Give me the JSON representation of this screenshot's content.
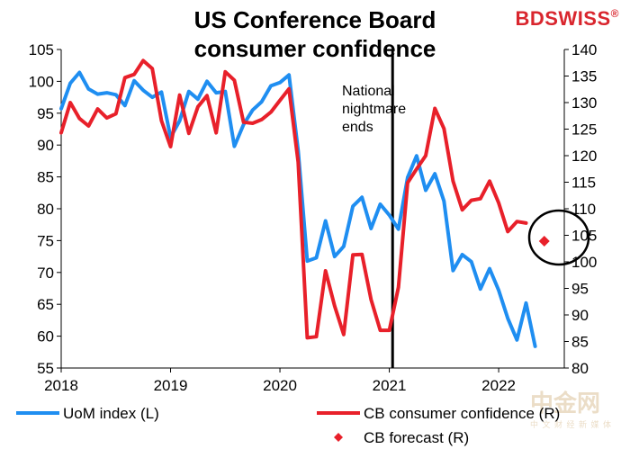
{
  "title_line1": "US Conference Board",
  "title_line2": "consumer confidence",
  "brand": {
    "part1": "BD",
    "part2": "SWISS",
    "accent": "#d9262e"
  },
  "watermark": {
    "main": "中金网",
    "sub": "中 文 财 经 新 媒 体"
  },
  "chart_data": {
    "type": "line",
    "annotation": {
      "text": [
        "National",
        "nightmare",
        "ends"
      ],
      "x": 2021.03
    },
    "left_axis": {
      "min": 55,
      "max": 105,
      "ticks": [
        55,
        60,
        65,
        70,
        75,
        80,
        85,
        90,
        95,
        100,
        105
      ]
    },
    "right_axis": {
      "min": 80,
      "max": 140,
      "ticks": [
        80,
        85,
        90,
        95,
        100,
        105,
        110,
        115,
        120,
        125,
        130,
        135,
        140
      ]
    },
    "x_axis": {
      "min": 2018,
      "max": 2022.6,
      "ticks": [
        "2018",
        "2019",
        "2020",
        "2021",
        "2022"
      ]
    },
    "series": [
      {
        "name": "UoM index (L)",
        "axis": "left",
        "color": "#1f8ef1",
        "points": [
          [
            2018.0,
            95.7
          ],
          [
            2018.083,
            99.7
          ],
          [
            2018.167,
            101.4
          ],
          [
            2018.25,
            98.8
          ],
          [
            2018.333,
            98.0
          ],
          [
            2018.417,
            98.2
          ],
          [
            2018.5,
            97.9
          ],
          [
            2018.583,
            96.2
          ],
          [
            2018.667,
            100.1
          ],
          [
            2018.75,
            98.6
          ],
          [
            2018.833,
            97.5
          ],
          [
            2018.917,
            98.3
          ],
          [
            2019.0,
            91.2
          ],
          [
            2019.083,
            93.8
          ],
          [
            2019.167,
            98.4
          ],
          [
            2019.25,
            97.2
          ],
          [
            2019.333,
            100.0
          ],
          [
            2019.417,
            98.2
          ],
          [
            2019.5,
            98.4
          ],
          [
            2019.583,
            89.8
          ],
          [
            2019.667,
            93.2
          ],
          [
            2019.75,
            95.5
          ],
          [
            2019.833,
            96.8
          ],
          [
            2019.917,
            99.3
          ],
          [
            2020.0,
            99.8
          ],
          [
            2020.083,
            101.0
          ],
          [
            2020.167,
            89.1
          ],
          [
            2020.25,
            71.8
          ],
          [
            2020.333,
            72.3
          ],
          [
            2020.417,
            78.1
          ],
          [
            2020.5,
            72.5
          ],
          [
            2020.583,
            74.1
          ],
          [
            2020.667,
            80.4
          ],
          [
            2020.75,
            81.8
          ],
          [
            2020.833,
            76.9
          ],
          [
            2020.917,
            80.7
          ],
          [
            2021.0,
            79.0
          ],
          [
            2021.083,
            76.8
          ],
          [
            2021.167,
            84.9
          ],
          [
            2021.25,
            88.3
          ],
          [
            2021.333,
            82.9
          ],
          [
            2021.417,
            85.5
          ],
          [
            2021.5,
            81.2
          ],
          [
            2021.583,
            70.3
          ],
          [
            2021.667,
            72.8
          ],
          [
            2021.75,
            71.7
          ],
          [
            2021.833,
            67.4
          ],
          [
            2021.917,
            70.6
          ],
          [
            2022.0,
            67.2
          ],
          [
            2022.083,
            62.8
          ],
          [
            2022.167,
            59.4
          ],
          [
            2022.25,
            65.2
          ],
          [
            2022.333,
            58.4
          ]
        ]
      },
      {
        "name": "CB consumer confidence (R)",
        "axis": "right",
        "color": "#e8202a",
        "points": [
          [
            2018.0,
            124.3
          ],
          [
            2018.083,
            130.0
          ],
          [
            2018.167,
            127.0
          ],
          [
            2018.25,
            125.6
          ],
          [
            2018.333,
            128.8
          ],
          [
            2018.417,
            127.1
          ],
          [
            2018.5,
            127.9
          ],
          [
            2018.583,
            134.7
          ],
          [
            2018.667,
            135.3
          ],
          [
            2018.75,
            137.9
          ],
          [
            2018.833,
            136.4
          ],
          [
            2018.917,
            126.6
          ],
          [
            2019.0,
            121.7
          ],
          [
            2019.083,
            131.4
          ],
          [
            2019.167,
            124.2
          ],
          [
            2019.25,
            129.2
          ],
          [
            2019.333,
            131.3
          ],
          [
            2019.417,
            124.3
          ],
          [
            2019.5,
            135.8
          ],
          [
            2019.583,
            134.2
          ],
          [
            2019.667,
            126.3
          ],
          [
            2019.75,
            126.1
          ],
          [
            2019.833,
            126.8
          ],
          [
            2019.917,
            128.2
          ],
          [
            2020.0,
            130.4
          ],
          [
            2020.083,
            132.6
          ],
          [
            2020.167,
            118.8
          ],
          [
            2020.25,
            85.7
          ],
          [
            2020.333,
            85.9
          ],
          [
            2020.417,
            98.3
          ],
          [
            2020.5,
            91.7
          ],
          [
            2020.583,
            86.3
          ],
          [
            2020.667,
            101.3
          ],
          [
            2020.75,
            101.4
          ],
          [
            2020.833,
            92.9
          ],
          [
            2020.917,
            87.1
          ],
          [
            2021.0,
            87.1
          ],
          [
            2021.083,
            95.2
          ],
          [
            2021.167,
            114.9
          ],
          [
            2021.25,
            117.5
          ],
          [
            2021.333,
            120.0
          ],
          [
            2021.417,
            128.9
          ],
          [
            2021.5,
            125.1
          ],
          [
            2021.583,
            115.2
          ],
          [
            2021.667,
            109.8
          ],
          [
            2021.75,
            111.6
          ],
          [
            2021.833,
            111.9
          ],
          [
            2021.917,
            115.2
          ],
          [
            2022.0,
            111.1
          ],
          [
            2022.083,
            105.7
          ],
          [
            2022.167,
            107.6
          ],
          [
            2022.25,
            107.3
          ]
        ]
      }
    ],
    "forecast": {
      "name": "CB forecast (R)",
      "axis": "right",
      "color": "#e8202a",
      "point": [
        2022.417,
        103.9
      ]
    },
    "legend": [
      {
        "label": "UoM index (L)",
        "color": "#1f8ef1",
        "kind": "line"
      },
      {
        "label": "CB consumer confidence (R)",
        "color": "#e8202a",
        "kind": "line"
      },
      {
        "label": "CB forecast (R)",
        "color": "#e8202a",
        "kind": "diamond"
      }
    ]
  }
}
